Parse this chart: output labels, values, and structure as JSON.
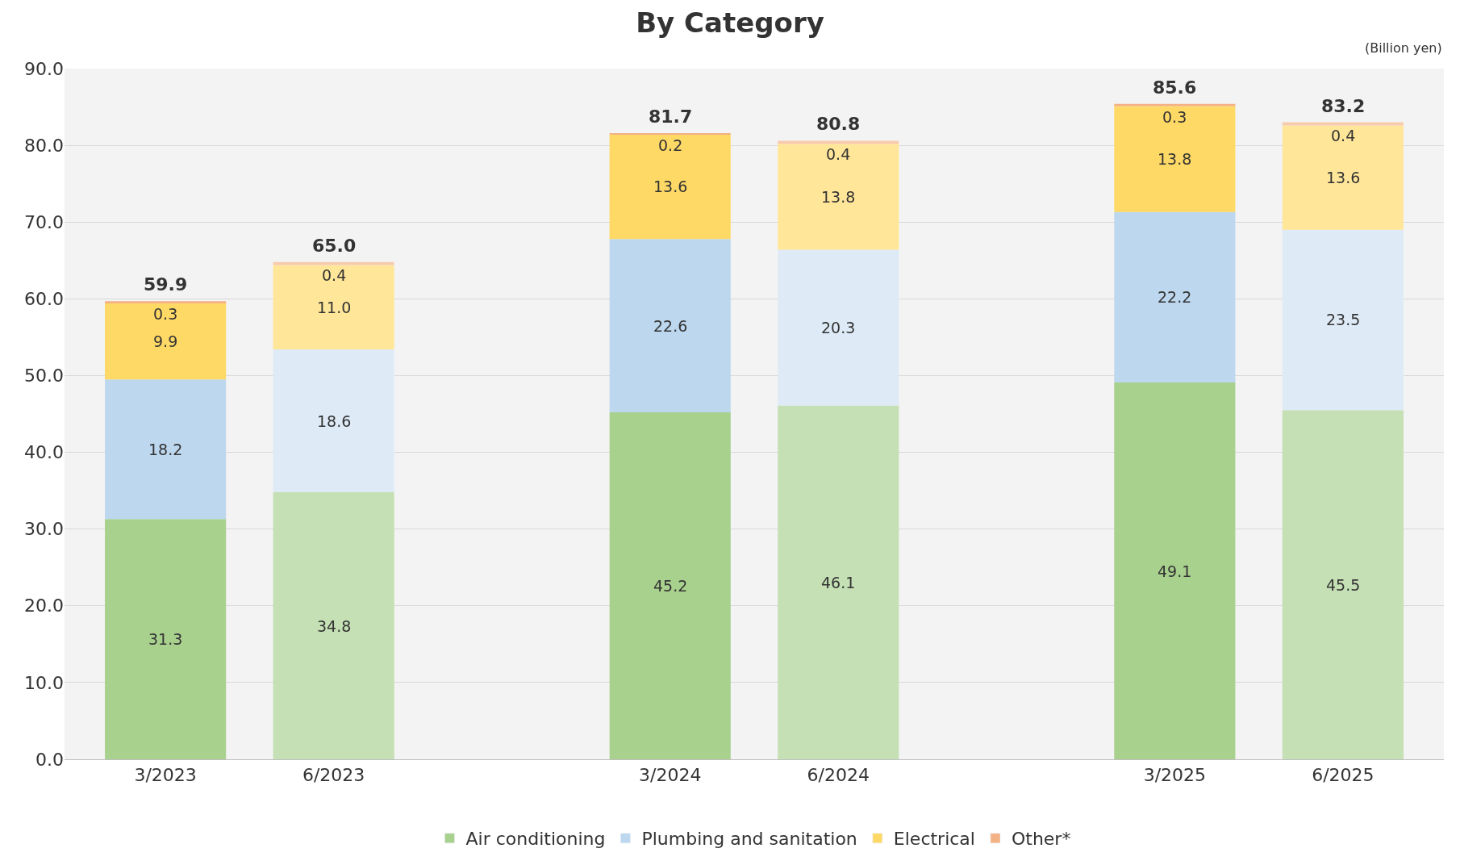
{
  "chart_data": {
    "type": "bar",
    "title": "By Category",
    "stacked": true,
    "categories": [
      "3/2023",
      "6/2023",
      null,
      "3/2024",
      "6/2024",
      null,
      "3/2025",
      "6/2025"
    ],
    "series": [
      {
        "name": "Air conditioning",
        "color": "#a9d18e",
        "colors": [
          "#a9d18e",
          "#c5e0b4",
          null,
          "#a9d18e",
          "#c5e0b4",
          null,
          "#a9d18e",
          "#c5e0b4"
        ],
        "values": [
          31.3,
          34.8,
          null,
          45.2,
          46.1,
          null,
          49.1,
          45.5
        ],
        "value_labels": [
          "31.3",
          "34.8",
          null,
          "45.2",
          "46.1",
          null,
          "49.1",
          "45.5"
        ]
      },
      {
        "name": "Plumbing and sanitation",
        "color": "#bdd7ee",
        "colors": [
          "#bdd7ee",
          "#deebf7",
          null,
          "#bdd7ee",
          "#deebf7",
          null,
          "#bdd7ee",
          "#deebf7"
        ],
        "values": [
          18.2,
          18.6,
          null,
          22.6,
          20.3,
          null,
          22.2,
          23.5
        ],
        "value_labels": [
          "18.2",
          "18.6",
          null,
          "22.6",
          "20.3",
          null,
          "22.2",
          "23.5"
        ]
      },
      {
        "name": "Electrical",
        "color": "#ffd966",
        "colors": [
          "#ffd966",
          "#ffe699",
          null,
          "#ffd966",
          "#ffe699",
          null,
          "#ffd966",
          "#ffe699"
        ],
        "values": [
          9.9,
          11.0,
          null,
          13.6,
          13.8,
          null,
          13.8,
          13.6
        ],
        "value_labels": [
          "9.9",
          "11.0",
          null,
          "13.6",
          "13.8",
          null,
          "13.8",
          "13.6"
        ]
      },
      {
        "name": "Other*",
        "color": "#f4b183",
        "colors": [
          "#f4b183",
          "#f8cbad",
          null,
          "#f4b183",
          "#f8cbad",
          null,
          "#f4b183",
          "#f8cbad"
        ],
        "values": [
          0.3,
          0.4,
          null,
          0.2,
          0.4,
          null,
          0.3,
          0.4
        ],
        "value_labels": [
          "0.3",
          "0.4",
          null,
          "0.2",
          "0.4",
          null,
          "0.3",
          "0.4"
        ]
      }
    ],
    "totals": [
      "59.9",
      "65.0",
      null,
      "81.7",
      "80.8",
      null,
      "85.6",
      "83.2"
    ],
    "ylim": [
      0,
      90
    ],
    "yticks": [
      {
        "value": 0,
        "label": "0.0"
      },
      {
        "value": 10,
        "label": "10.0"
      },
      {
        "value": 20,
        "label": "20.0"
      },
      {
        "value": 30,
        "label": "30.0"
      },
      {
        "value": 40,
        "label": "40.0"
      },
      {
        "value": 50,
        "label": "50.0"
      },
      {
        "value": 60,
        "label": "60.0"
      },
      {
        "value": 70,
        "label": "70.0"
      },
      {
        "value": 80,
        "label": "80.0"
      },
      {
        "value": 90,
        "label": "90.0"
      }
    ],
    "grid": "y",
    "legend": "bottom",
    "annotations": [
      "(Billion yen)"
    ]
  }
}
